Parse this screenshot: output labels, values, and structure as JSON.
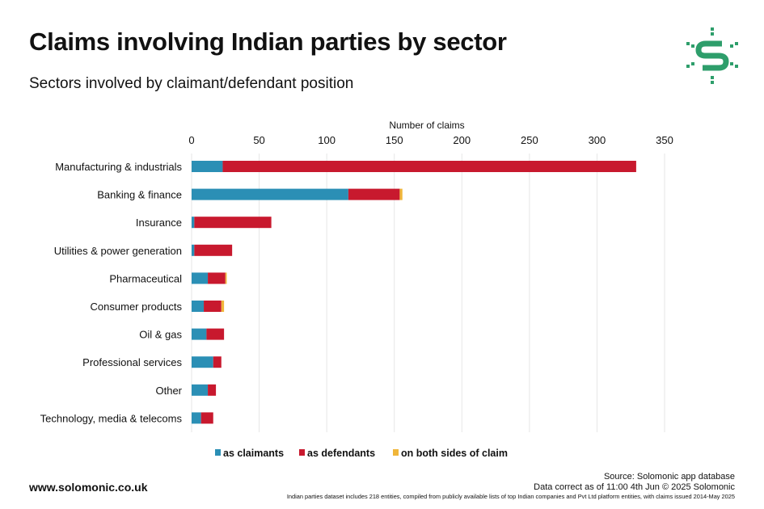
{
  "header": {
    "title": "Claims involving Indian parties by sector",
    "subtitle": "Sectors involved by claimant/defendant position"
  },
  "logo": {
    "icon": "solomonic-s-logo-icon",
    "color": "#2e9e6b"
  },
  "colors": {
    "claimants": "#2b8fb5",
    "defendants": "#c8192e",
    "both": "#f0b63a",
    "grid": "#e6e6e6"
  },
  "chart_data": {
    "type": "bar",
    "orientation": "horizontal",
    "stacked": true,
    "xlabel": "Number of claims",
    "xlim": [
      0,
      350
    ],
    "xticks": [
      0,
      50,
      100,
      150,
      200,
      250,
      300,
      350
    ],
    "categories": [
      "Manufacturing & industrials",
      "Banking & finance",
      "Insurance",
      "Utilities & power generation",
      "Pharmaceutical",
      "Consumer products",
      "Oil & gas",
      "Professional services",
      "Other",
      "Technology, media & telecoms"
    ],
    "series": [
      {
        "name": "as claimants",
        "color": "#2b8fb5",
        "values": [
          23,
          116,
          2,
          2,
          12,
          9,
          11,
          16,
          12,
          7
        ]
      },
      {
        "name": "as defendants",
        "color": "#c8192e",
        "values": [
          306,
          38,
          57,
          28,
          13,
          13,
          13,
          6,
          6,
          9
        ]
      },
      {
        "name": "on both sides of claim",
        "color": "#f0b63a",
        "values": [
          0,
          2,
          0,
          0,
          1,
          2,
          0,
          0,
          0,
          0
        ]
      }
    ],
    "grid": true,
    "legend_position": "bottom"
  },
  "footer": {
    "website": "www.solomonic.co.uk",
    "source": "Source: Solomonic app database",
    "data_note": "Data correct as of 11:00 4th Jun © 2025 Solomonic",
    "fine_print": "Indian parties dataset includes 218 entities, compiled from publicly available lists of top Indian companies and Pvt Ltd platform entities, with claims issued 2014-May 2025"
  }
}
